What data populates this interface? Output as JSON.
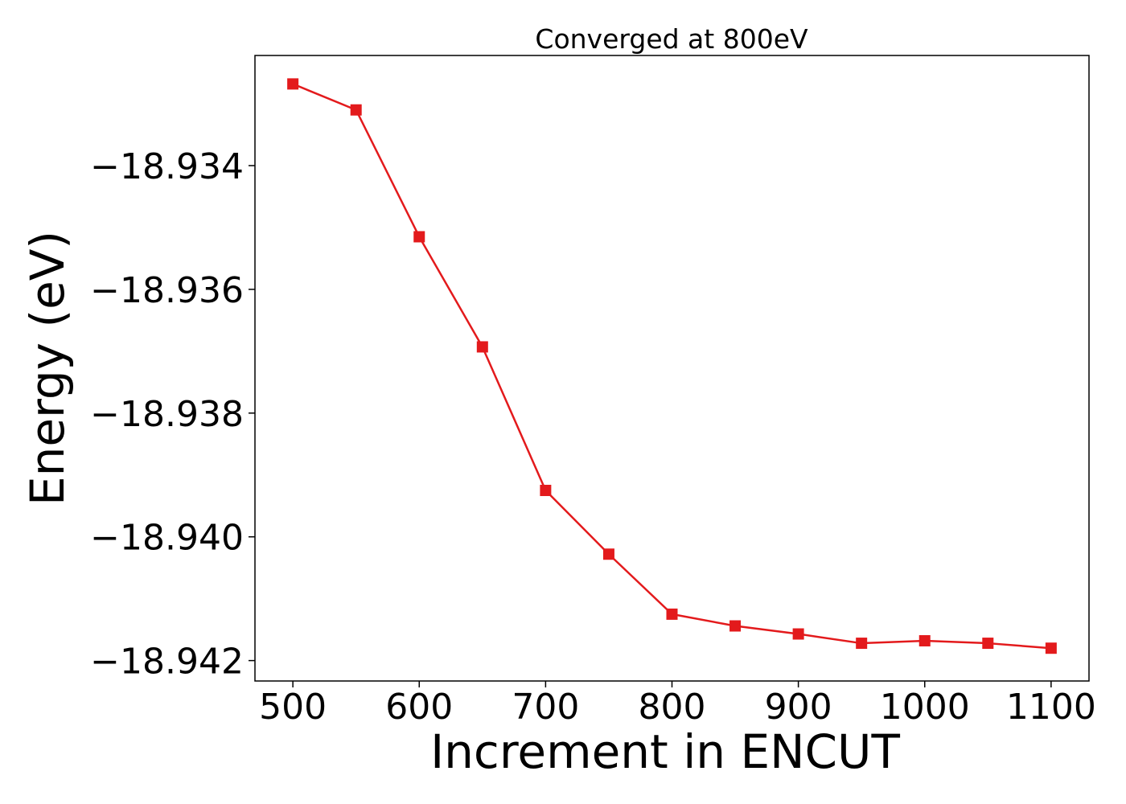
{
  "chart_data": {
    "type": "line",
    "title": "Converged at 800eV",
    "xlabel": "Increment in ENCUT",
    "ylabel": "Energy (eV)",
    "x": [
      500,
      550,
      600,
      650,
      700,
      750,
      800,
      850,
      900,
      950,
      1000,
      1050,
      1100
    ],
    "series": [
      {
        "values": [
          -18.93268,
          -18.9331,
          -18.93515,
          -18.93693,
          -18.93925,
          -18.94028,
          -18.94125,
          -18.94144,
          -18.94157,
          -18.94172,
          -18.94168,
          -18.94172,
          -18.9418
        ],
        "color": "#e31a1c",
        "marker": "square"
      }
    ],
    "xlim": [
      470,
      1130
    ],
    "ylim": [
      -18.94233,
      -18.93222
    ],
    "xticks": [
      500,
      600,
      700,
      800,
      900,
      1000,
      1100
    ],
    "xtick_labels": [
      "500",
      "600",
      "700",
      "800",
      "900",
      "1000",
      "1100"
    ],
    "yticks": [
      -18.934,
      -18.936,
      -18.938,
      -18.94,
      -18.942
    ],
    "ytick_labels": [
      "−18.934",
      "−18.936",
      "−18.938",
      "−18.940",
      "−18.942"
    ],
    "grid": false,
    "legend": "none"
  }
}
